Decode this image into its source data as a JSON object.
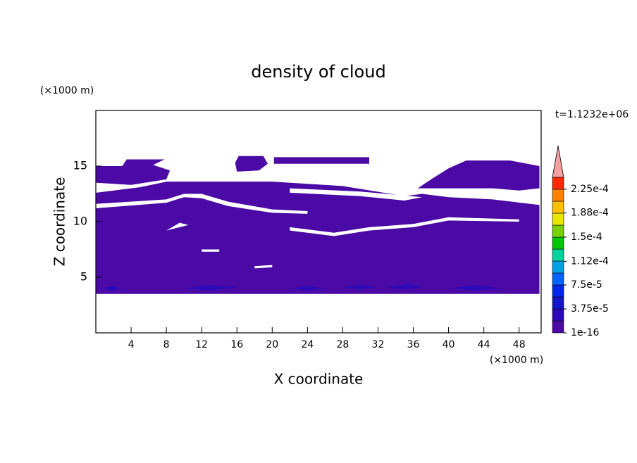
{
  "chart_data": {
    "type": "contour",
    "title": "density of cloud",
    "xlabel": "X coordinate",
    "ylabel": "Z coordinate",
    "xunit": "(×1000 m)",
    "yunit": "(×1000 m)",
    "time_label": "t=1.1232e+06",
    "xlim": [
      0,
      50.5
    ],
    "ylim": [
      0,
      20
    ],
    "xticks": [
      4,
      8,
      12,
      16,
      20,
      24,
      28,
      32,
      36,
      40,
      44,
      48
    ],
    "yticks": [
      5,
      10,
      15
    ],
    "colorbar": {
      "clim": [
        1e-16,
        0.00024375
      ],
      "ticks": [
        1e-16,
        {
          "value": 3.75e-05,
          "label": "3.75e-5"
        },
        {
          "value": 7.5e-05,
          "label": "7.5e-5"
        },
        {
          "value": 0.000112,
          "label": "1.12e-4"
        },
        {
          "value": 0.00015,
          "label": "1.5e-4"
        },
        {
          "value": 0.000188,
          "label": "1.88e-4"
        },
        {
          "value": 0.000225,
          "label": "2.25e-4"
        }
      ],
      "colors": [
        "#4b0aa5",
        "#2d0ab9",
        "#1414c8",
        "#0028e6",
        "#0064ff",
        "#00a0e6",
        "#00d2a0",
        "#00c800",
        "#78d200",
        "#e6e600",
        "#ffbe00",
        "#ff8200",
        "#ff2800"
      ],
      "extend_color": "#f4a0a0"
    },
    "filled": [
      {
        "level": 0,
        "points": [
          [
            0,
            3.5
          ],
          [
            50.3,
            3.5
          ],
          [
            50.3,
            11.5
          ],
          [
            45,
            12.0
          ],
          [
            40,
            12.2
          ],
          [
            37,
            12.5
          ],
          [
            35,
            12.3
          ],
          [
            28,
            13.2
          ],
          [
            20,
            13.6
          ],
          [
            8,
            13.6
          ],
          [
            5,
            13.1
          ],
          [
            0,
            12.6
          ]
        ]
      },
      {
        "level": 0,
        "points": [
          [
            0,
            13.5
          ],
          [
            4,
            13.3
          ],
          [
            8,
            13.8
          ],
          [
            8.4,
            14.6
          ],
          [
            6.5,
            15.1
          ],
          [
            7.8,
            15.6
          ],
          [
            3.5,
            15.6
          ],
          [
            3,
            15.0
          ],
          [
            0,
            15.0
          ]
        ]
      },
      {
        "level": 0,
        "points": [
          [
            16,
            14.5
          ],
          [
            18.5,
            14.6
          ],
          [
            19.5,
            15.2
          ],
          [
            19,
            15.9
          ],
          [
            16.2,
            15.9
          ],
          [
            15.8,
            15.3
          ]
        ]
      },
      {
        "level": 0,
        "points": [
          [
            20.2,
            15.2
          ],
          [
            31,
            15.2
          ],
          [
            31,
            15.8
          ],
          [
            20.2,
            15.8
          ]
        ]
      },
      {
        "level": 0,
        "points": [
          [
            36.5,
            13.0
          ],
          [
            38,
            13.8
          ],
          [
            40,
            14.8
          ],
          [
            42,
            15.5
          ],
          [
            47,
            15.5
          ],
          [
            50.3,
            15.0
          ],
          [
            50.3,
            13.0
          ],
          [
            48,
            12.8
          ],
          [
            45,
            13.0
          ],
          [
            40,
            13.0
          ]
        ]
      },
      {
        "level": 1,
        "points": [
          [
            0.5,
            4.0
          ],
          [
            2,
            4.2
          ],
          [
            3,
            4.0
          ],
          [
            2,
            3.8
          ]
        ]
      },
      {
        "level": 1,
        "points": [
          [
            10,
            4.0
          ],
          [
            13,
            4.3
          ],
          [
            16,
            4.1
          ],
          [
            13,
            3.8
          ]
        ]
      },
      {
        "level": 1,
        "points": [
          [
            22,
            4.0
          ],
          [
            24,
            4.2
          ],
          [
            26,
            4.0
          ],
          [
            24,
            3.8
          ]
        ]
      },
      {
        "level": 1,
        "points": [
          [
            28,
            4.1
          ],
          [
            30,
            4.3
          ],
          [
            32,
            4.1
          ],
          [
            30,
            3.9
          ]
        ]
      },
      {
        "level": 1,
        "points": [
          [
            33,
            4.1
          ],
          [
            35.5,
            4.4
          ],
          [
            37,
            4.1
          ],
          [
            35,
            3.9
          ]
        ]
      },
      {
        "level": 1,
        "points": [
          [
            40,
            4.0
          ],
          [
            43,
            4.3
          ],
          [
            46,
            4.0
          ],
          [
            43,
            3.8
          ]
        ]
      }
    ],
    "gaps": [
      {
        "points": [
          [
            0,
            11.2
          ],
          [
            8,
            11.7
          ],
          [
            10,
            12.2
          ],
          [
            12,
            12.1
          ],
          [
            15,
            11.4
          ],
          [
            20,
            10.8
          ],
          [
            24,
            10.7
          ],
          [
            24,
            10.95
          ],
          [
            20,
            11.1
          ],
          [
            15,
            11.8
          ],
          [
            12,
            12.5
          ],
          [
            10,
            12.5
          ],
          [
            8,
            12.0
          ],
          [
            0,
            11.6
          ]
        ]
      },
      {
        "points": [
          [
            22,
            12.6
          ],
          [
            30,
            12.3
          ],
          [
            35,
            11.9
          ],
          [
            37,
            12.2
          ],
          [
            35,
            12.35
          ],
          [
            30,
            12.7
          ],
          [
            22,
            13.0
          ]
        ]
      },
      {
        "points": [
          [
            0,
            12.6
          ],
          [
            5,
            13.1
          ],
          [
            8,
            13.6
          ],
          [
            8,
            13.8
          ],
          [
            4,
            13.3
          ],
          [
            0,
            13.5
          ]
        ]
      },
      {
        "points": [
          [
            22,
            9.2
          ],
          [
            27,
            8.7
          ],
          [
            31,
            9.2
          ],
          [
            36,
            9.5
          ],
          [
            40,
            10.1
          ],
          [
            48,
            10.0
          ],
          [
            48,
            10.2
          ],
          [
            40,
            10.4
          ],
          [
            36,
            9.8
          ],
          [
            31,
            9.5
          ],
          [
            27,
            9.0
          ],
          [
            22,
            9.5
          ]
        ]
      },
      {
        "points": [
          [
            8,
            9.2
          ],
          [
            9.5,
            9.9
          ],
          [
            10.5,
            9.7
          ],
          [
            9.5,
            9.5
          ]
        ]
      },
      {
        "points": [
          [
            12,
            7.3
          ],
          [
            14,
            7.3
          ],
          [
            14,
            7.5
          ],
          [
            12,
            7.5
          ]
        ]
      },
      {
        "points": [
          [
            18,
            5.8
          ],
          [
            20,
            5.9
          ],
          [
            20,
            6.1
          ],
          [
            18,
            6.0
          ]
        ]
      }
    ]
  }
}
